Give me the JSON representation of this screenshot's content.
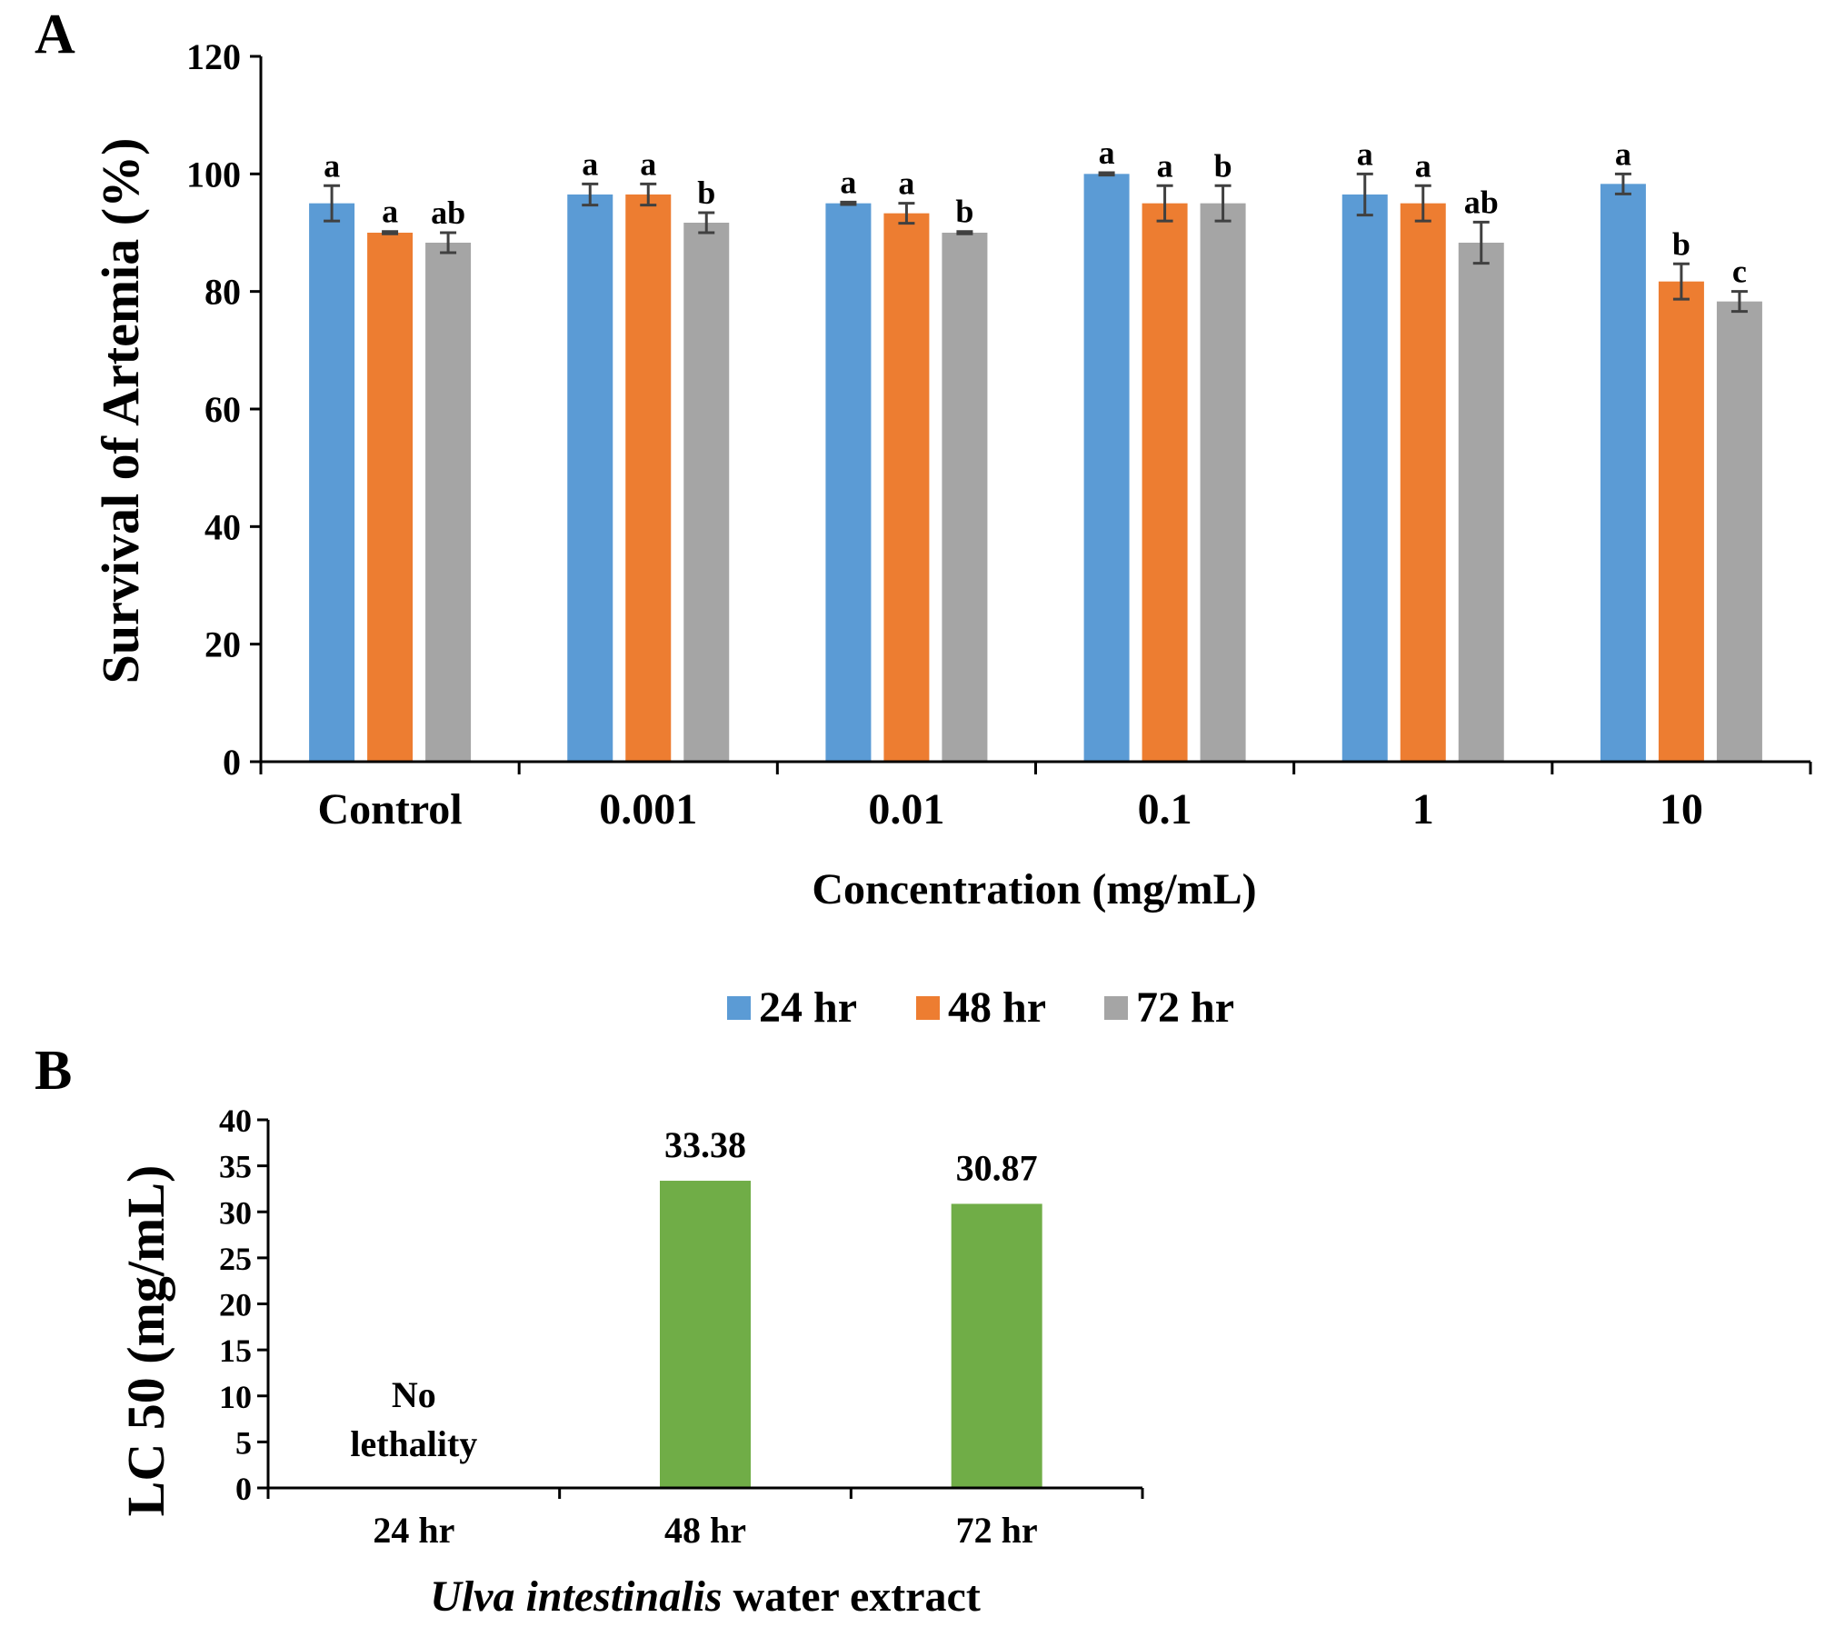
{
  "chart_data": [
    {
      "panel_label": "A",
      "type": "bar",
      "xlabel": "Concentration (mg/mL)",
      "ylabel": "Survival of Artemia (%)",
      "ylim": [
        0,
        120
      ],
      "yticks": [
        "0",
        "20",
        "40",
        "60",
        "80",
        "100",
        "120"
      ],
      "categories": [
        "Control",
        "0.001",
        "0.01",
        "0.1",
        "1",
        "10"
      ],
      "legend_position": "bottom",
      "series": [
        {
          "name": "24 hr",
          "color": "#5B9BD5",
          "values": [
            95,
            96.5,
            95,
            100,
            96.5,
            98.3
          ],
          "errors": [
            3,
            1.8,
            0.2,
            0.2,
            3.5,
            1.7
          ],
          "letters": [
            "a",
            "a",
            "a",
            "a",
            "a",
            "a"
          ]
        },
        {
          "name": "48 hr",
          "color": "#ED7D31",
          "values": [
            90,
            96.5,
            93.3,
            95,
            95,
            81.7
          ],
          "errors": [
            0.2,
            1.8,
            1.7,
            3,
            3,
            3
          ],
          "letters": [
            "a",
            "a",
            "a",
            "a",
            "a",
            "b"
          ]
        },
        {
          "name": "72 hr",
          "color": "#A5A5A5",
          "values": [
            88.3,
            91.7,
            90,
            95,
            88.3,
            78.3
          ],
          "errors": [
            1.7,
            1.7,
            0.2,
            3,
            3.5,
            1.7
          ],
          "letters": [
            "ab",
            "b",
            "b",
            "b",
            "ab",
            "c"
          ]
        }
      ]
    },
    {
      "panel_label": "B",
      "type": "bar",
      "xlabel_italic": "Ulva intestinalis",
      "xlabel_rest": " water extract",
      "ylabel": "LC 50 (mg/mL)",
      "ylim": [
        0,
        40
      ],
      "yticks": [
        "0",
        "5",
        "10",
        "15",
        "20",
        "25",
        "30",
        "35",
        "40"
      ],
      "categories": [
        "24 hr",
        "48 hr",
        "72 hr"
      ],
      "color": "#70AD47",
      "values": [
        null,
        33.38,
        30.87
      ],
      "value_labels": [
        "",
        "33.38",
        "30.87"
      ],
      "no_value_text": [
        "No",
        "lethality"
      ]
    }
  ]
}
